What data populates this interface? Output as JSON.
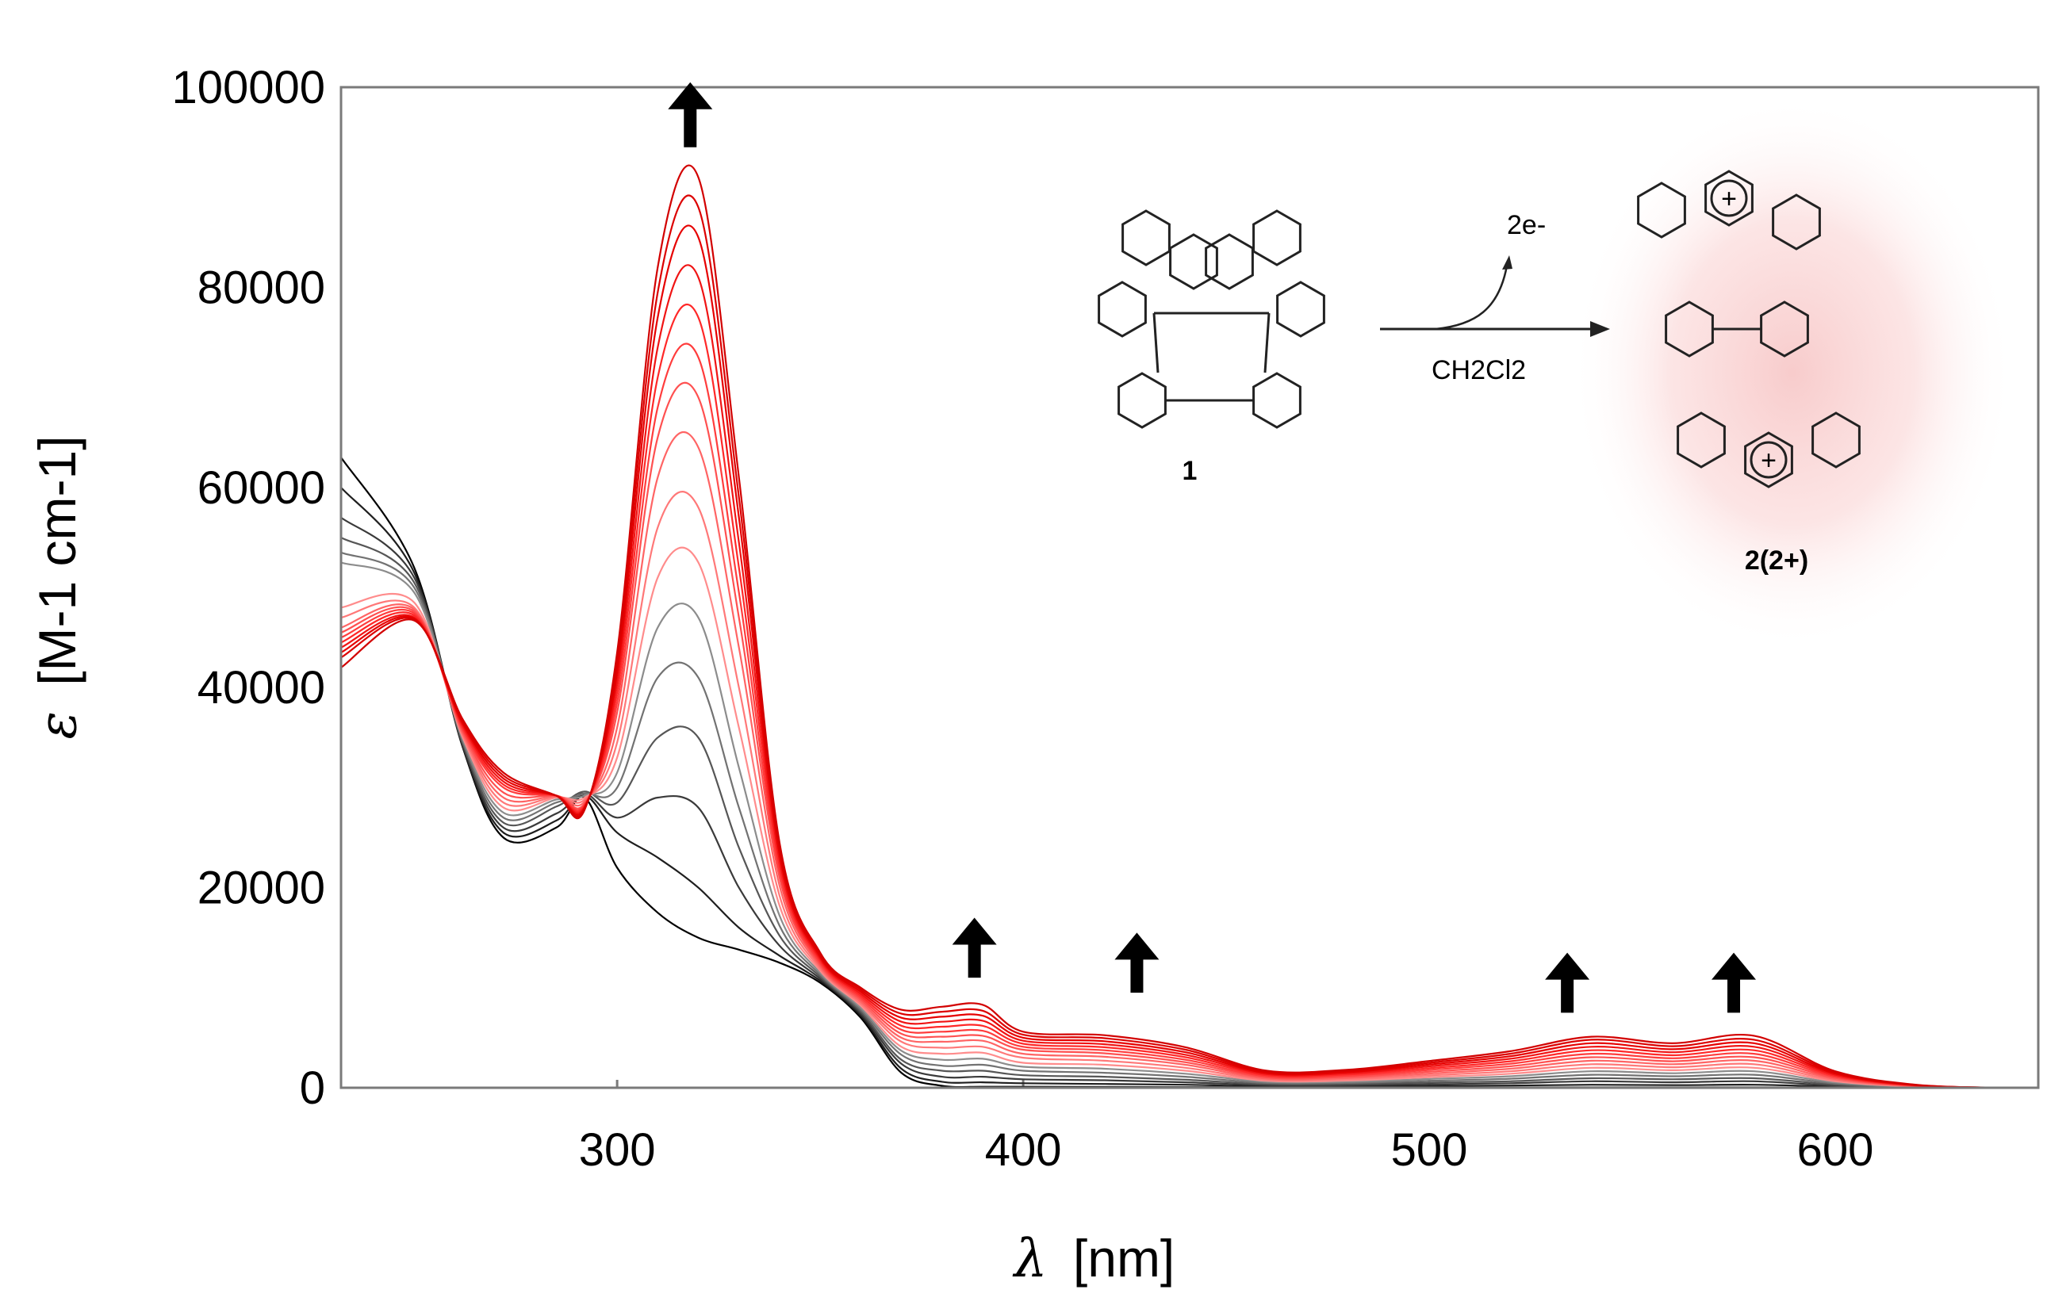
{
  "chart_data": {
    "type": "line",
    "title": "",
    "xlabel_symbol": "λ",
    "xlabel_unit": "[nm]",
    "ylabel_symbol": "ε",
    "ylabel_unit": "[M-1 cm-1]",
    "xlim": [
      232,
      650
    ],
    "ylim": [
      0,
      100000
    ],
    "x_ticks": [
      300,
      400,
      500,
      600
    ],
    "x_tick_labels": [
      "300",
      "400",
      "500",
      "600"
    ],
    "y_ticks": [
      0,
      20000,
      40000,
      60000,
      80000,
      100000
    ],
    "y_tick_labels": [
      "0",
      "20000",
      "40000",
      "60000",
      "80000",
      "100000"
    ],
    "grid": false,
    "legend": "none",
    "trend": "Spectral evolution during two-electron oxidation of 1 to 2(2+) in CH2Cl2; curves change from black (start) to red (end)",
    "series": [
      {
        "name": "spectrum 1",
        "color": "#000000",
        "x": [
          232,
          250,
          262,
          272,
          285,
          292,
          300,
          310,
          320,
          330,
          340,
          350,
          360,
          370,
          380,
          390,
          400,
          420,
          440,
          460,
          480,
          500,
          520,
          540,
          560,
          580,
          600,
          620,
          640,
          650
        ],
        "y": [
          63000,
          52000,
          34000,
          25000,
          26000,
          29000,
          22000,
          17500,
          15000,
          13800,
          12500,
          10500,
          7000,
          1500,
          200,
          100,
          100,
          80,
          60,
          50,
          40,
          40,
          40,
          40,
          40,
          40,
          30,
          20,
          10,
          0
        ]
      },
      {
        "name": "spectrum 2",
        "color": "#1e1e1e",
        "x": [
          232,
          250,
          262,
          272,
          285,
          292,
          300,
          310,
          320,
          330,
          340,
          350,
          360,
          370,
          380,
          390,
          400,
          420,
          440,
          460,
          480,
          500,
          520,
          540,
          560,
          580,
          600,
          620,
          640,
          650
        ],
        "y": [
          60000,
          51500,
          34000,
          25500,
          26700,
          29200,
          25500,
          23000,
          20000,
          16000,
          13200,
          10700,
          7200,
          1900,
          600,
          550,
          450,
          380,
          300,
          150,
          140,
          180,
          220,
          300,
          260,
          300,
          110,
          30,
          10,
          0
        ]
      },
      {
        "name": "spectrum 3",
        "color": "#3a3a3a",
        "x": [
          232,
          250,
          262,
          272,
          285,
          292,
          300,
          310,
          320,
          330,
          340,
          350,
          360,
          370,
          380,
          390,
          400,
          420,
          440,
          460,
          480,
          500,
          520,
          540,
          560,
          580,
          600,
          620,
          640,
          650
        ],
        "y": [
          57000,
          51000,
          34200,
          26000,
          27400,
          29400,
          27000,
          29000,
          28000,
          20000,
          14200,
          10900,
          7400,
          2400,
          1100,
          1100,
          850,
          750,
          550,
          260,
          250,
          350,
          450,
          650,
          550,
          650,
          210,
          40,
          10,
          0
        ]
      },
      {
        "name": "spectrum 4",
        "color": "#565656",
        "x": [
          232,
          250,
          262,
          272,
          285,
          292,
          300,
          310,
          320,
          330,
          340,
          350,
          360,
          370,
          380,
          390,
          400,
          420,
          440,
          460,
          480,
          500,
          520,
          540,
          560,
          580,
          600,
          620,
          640,
          650
        ],
        "y": [
          55000,
          50500,
          34400,
          26500,
          28100,
          29600,
          28500,
          35000,
          35000,
          24000,
          15200,
          11100,
          7600,
          2800,
          1700,
          1700,
          1250,
          1100,
          800,
          370,
          370,
          520,
          650,
          950,
          850,
          950,
          320,
          60,
          10,
          0
        ]
      },
      {
        "name": "spectrum 5",
        "color": "#727272",
        "x": [
          232,
          250,
          262,
          272,
          285,
          292,
          300,
          310,
          320,
          330,
          340,
          350,
          360,
          370,
          380,
          390,
          400,
          420,
          440,
          460,
          480,
          500,
          520,
          540,
          560,
          580,
          600,
          620,
          640,
          650
        ],
        "y": [
          53500,
          50000,
          34600,
          27000,
          28500,
          29400,
          30000,
          41000,
          41000,
          28000,
          16200,
          11300,
          7800,
          3300,
          2200,
          2300,
          1700,
          1500,
          1100,
          480,
          490,
          700,
          900,
          1300,
          1150,
          1300,
          430,
          80,
          10,
          0
        ]
      },
      {
        "name": "spectrum 6",
        "color": "#8c8c8c",
        "x": [
          232,
          250,
          262,
          272,
          285,
          292,
          300,
          310,
          320,
          330,
          340,
          350,
          360,
          370,
          380,
          390,
          400,
          420,
          440,
          460,
          480,
          500,
          520,
          540,
          560,
          580,
          600,
          620,
          640,
          650
        ],
        "y": [
          52500,
          49500,
          34800,
          27500,
          28800,
          29200,
          31500,
          46000,
          47000,
          32000,
          17200,
          11500,
          8000,
          3700,
          2800,
          2900,
          2100,
          1900,
          1400,
          600,
          610,
          880,
          1150,
          1650,
          1450,
          1650,
          540,
          100,
          10,
          0
        ]
      },
      {
        "name": "spectrum 7",
        "color": "#ff8c8c",
        "x": [
          232,
          250,
          262,
          272,
          285,
          292,
          300,
          310,
          320,
          330,
          340,
          350,
          360,
          370,
          380,
          390,
          400,
          420,
          440,
          460,
          480,
          500,
          520,
          540,
          560,
          580,
          600,
          620,
          640,
          650
        ],
        "y": [
          48000,
          48500,
          35000,
          28000,
          29000,
          29000,
          33000,
          51000,
          52500,
          36000,
          18200,
          11700,
          8200,
          4100,
          3400,
          3500,
          2500,
          2300,
          1700,
          700,
          730,
          1060,
          1400,
          2000,
          1750,
          2000,
          650,
          120,
          10,
          0
        ]
      },
      {
        "name": "spectrum 8",
        "color": "#ff7878",
        "x": [
          232,
          250,
          262,
          272,
          285,
          292,
          300,
          310,
          320,
          330,
          340,
          350,
          360,
          370,
          380,
          390,
          400,
          420,
          440,
          460,
          480,
          500,
          520,
          540,
          560,
          580,
          600,
          620,
          640,
          650
        ],
        "y": [
          47000,
          48000,
          35200,
          28500,
          29100,
          28800,
          34500,
          56000,
          58000,
          40000,
          19200,
          11900,
          8400,
          4600,
          4000,
          4100,
          3000,
          2700,
          2000,
          810,
          850,
          1240,
          1650,
          2350,
          2050,
          2350,
          760,
          140,
          10,
          0
        ]
      },
      {
        "name": "spectrum 9",
        "color": "#ff6464",
        "x": [
          232,
          250,
          262,
          272,
          285,
          292,
          300,
          310,
          320,
          330,
          340,
          350,
          360,
          370,
          380,
          390,
          400,
          420,
          440,
          460,
          480,
          500,
          520,
          540,
          560,
          580,
          600,
          620,
          640,
          650
        ],
        "y": [
          46000,
          47800,
          35400,
          29000,
          29150,
          28600,
          36000,
          61000,
          64000,
          44000,
          20200,
          12100,
          8600,
          5000,
          4600,
          4700,
          3400,
          3100,
          2300,
          920,
          970,
          1420,
          1900,
          2700,
          2350,
          2700,
          870,
          160,
          10,
          0
        ]
      },
      {
        "name": "spectrum 10",
        "color": "#ff5050",
        "x": [
          232,
          250,
          262,
          272,
          285,
          292,
          300,
          310,
          320,
          330,
          340,
          350,
          360,
          370,
          380,
          390,
          400,
          420,
          440,
          460,
          480,
          500,
          520,
          540,
          560,
          580,
          600,
          620,
          640,
          650
        ],
        "y": [
          45500,
          47600,
          35600,
          29500,
          29200,
          28400,
          37500,
          65000,
          69000,
          47000,
          21000,
          12300,
          8800,
          5400,
          5100,
          5200,
          3800,
          3450,
          2550,
          1030,
          1090,
          1600,
          2150,
          3050,
          2650,
          3050,
          980,
          180,
          10,
          0
        ]
      },
      {
        "name": "spectrum 11",
        "color": "#ff3c3c",
        "x": [
          232,
          250,
          262,
          272,
          285,
          292,
          300,
          310,
          320,
          330,
          340,
          350,
          360,
          370,
          380,
          390,
          400,
          420,
          440,
          460,
          480,
          500,
          520,
          540,
          560,
          580,
          600,
          620,
          640,
          650
        ],
        "y": [
          45000,
          47400,
          35800,
          30000,
          29200,
          28300,
          38500,
          68000,
          73000,
          49500,
          21600,
          12500,
          9000,
          5800,
          5600,
          5700,
          4100,
          3750,
          2800,
          1140,
          1210,
          1780,
          2400,
          3400,
          2950,
          3400,
          1090,
          200,
          10,
          0
        ]
      },
      {
        "name": "spectrum 12",
        "color": "#ff2828",
        "x": [
          232,
          250,
          262,
          272,
          285,
          292,
          300,
          310,
          320,
          330,
          340,
          350,
          360,
          370,
          380,
          390,
          400,
          420,
          440,
          460,
          480,
          500,
          520,
          540,
          560,
          580,
          600,
          620,
          640,
          650
        ],
        "y": [
          44500,
          47200,
          36000,
          30300,
          29200,
          28200,
          39500,
          71000,
          77000,
          52000,
          22200,
          12700,
          9200,
          6200,
          6100,
          6200,
          4400,
          4050,
          3050,
          1250,
          1330,
          1960,
          2650,
          3750,
          3250,
          3750,
          1200,
          220,
          10,
          0
        ]
      },
      {
        "name": "spectrum 13",
        "color": "#f01414",
        "x": [
          232,
          250,
          262,
          272,
          285,
          292,
          300,
          310,
          320,
          330,
          340,
          350,
          360,
          370,
          380,
          390,
          400,
          420,
          440,
          460,
          480,
          500,
          520,
          540,
          560,
          580,
          600,
          620,
          640,
          650
        ],
        "y": [
          44000,
          47000,
          36200,
          30600,
          29200,
          28100,
          40500,
          74000,
          81000,
          54500,
          22800,
          12900,
          9400,
          6600,
          6600,
          6700,
          4700,
          4350,
          3300,
          1360,
          1450,
          2140,
          2900,
          4100,
          3550,
          4100,
          1310,
          240,
          10,
          0
        ]
      },
      {
        "name": "spectrum 14",
        "color": "#e60000",
        "x": [
          232,
          250,
          262,
          272,
          285,
          292,
          300,
          310,
          320,
          330,
          340,
          350,
          360,
          370,
          380,
          390,
          400,
          420,
          440,
          460,
          480,
          500,
          520,
          540,
          560,
          580,
          600,
          620,
          640,
          650
        ],
        "y": [
          43500,
          46900,
          36400,
          30900,
          29200,
          28000,
          41500,
          77000,
          85000,
          57000,
          23400,
          13100,
          9600,
          7000,
          7100,
          7200,
          5000,
          4650,
          3550,
          1470,
          1570,
          2320,
          3150,
          4450,
          3850,
          4450,
          1420,
          260,
          10,
          0
        ]
      },
      {
        "name": "spectrum 15",
        "color": "#dc0000",
        "x": [
          232,
          250,
          262,
          272,
          285,
          292,
          300,
          310,
          320,
          330,
          340,
          350,
          360,
          370,
          380,
          390,
          400,
          420,
          440,
          460,
          480,
          500,
          520,
          540,
          560,
          580,
          600,
          620,
          640,
          650
        ],
        "y": [
          43000,
          46800,
          36600,
          31200,
          29200,
          27900,
          42500,
          79500,
          88000,
          59000,
          24000,
          13300,
          9800,
          7400,
          7600,
          7700,
          5300,
          4950,
          3800,
          1580,
          1690,
          2500,
          3400,
          4800,
          4150,
          4800,
          1530,
          280,
          10,
          0
        ]
      },
      {
        "name": "spectrum 16",
        "color": "#d20000",
        "x": [
          232,
          250,
          262,
          272,
          285,
          292,
          300,
          310,
          320,
          330,
          340,
          350,
          360,
          370,
          380,
          390,
          400,
          420,
          440,
          460,
          480,
          500,
          520,
          540,
          560,
          580,
          600,
          620,
          640,
          650
        ],
        "y": [
          42000,
          46700,
          36800,
          31500,
          29200,
          27800,
          43500,
          82000,
          91000,
          61000,
          24500,
          13500,
          10000,
          7800,
          8100,
          8300,
          5600,
          5250,
          4050,
          1700,
          1810,
          2680,
          3650,
          5100,
          4450,
          5200,
          1650,
          300,
          10,
          0
        ]
      }
    ]
  },
  "scheme": {
    "reactant_label": "1",
    "electrons_label": "2e-",
    "solvent_label": "CH2Cl2",
    "product_label": "2(2+)",
    "plus_sign": "+"
  }
}
